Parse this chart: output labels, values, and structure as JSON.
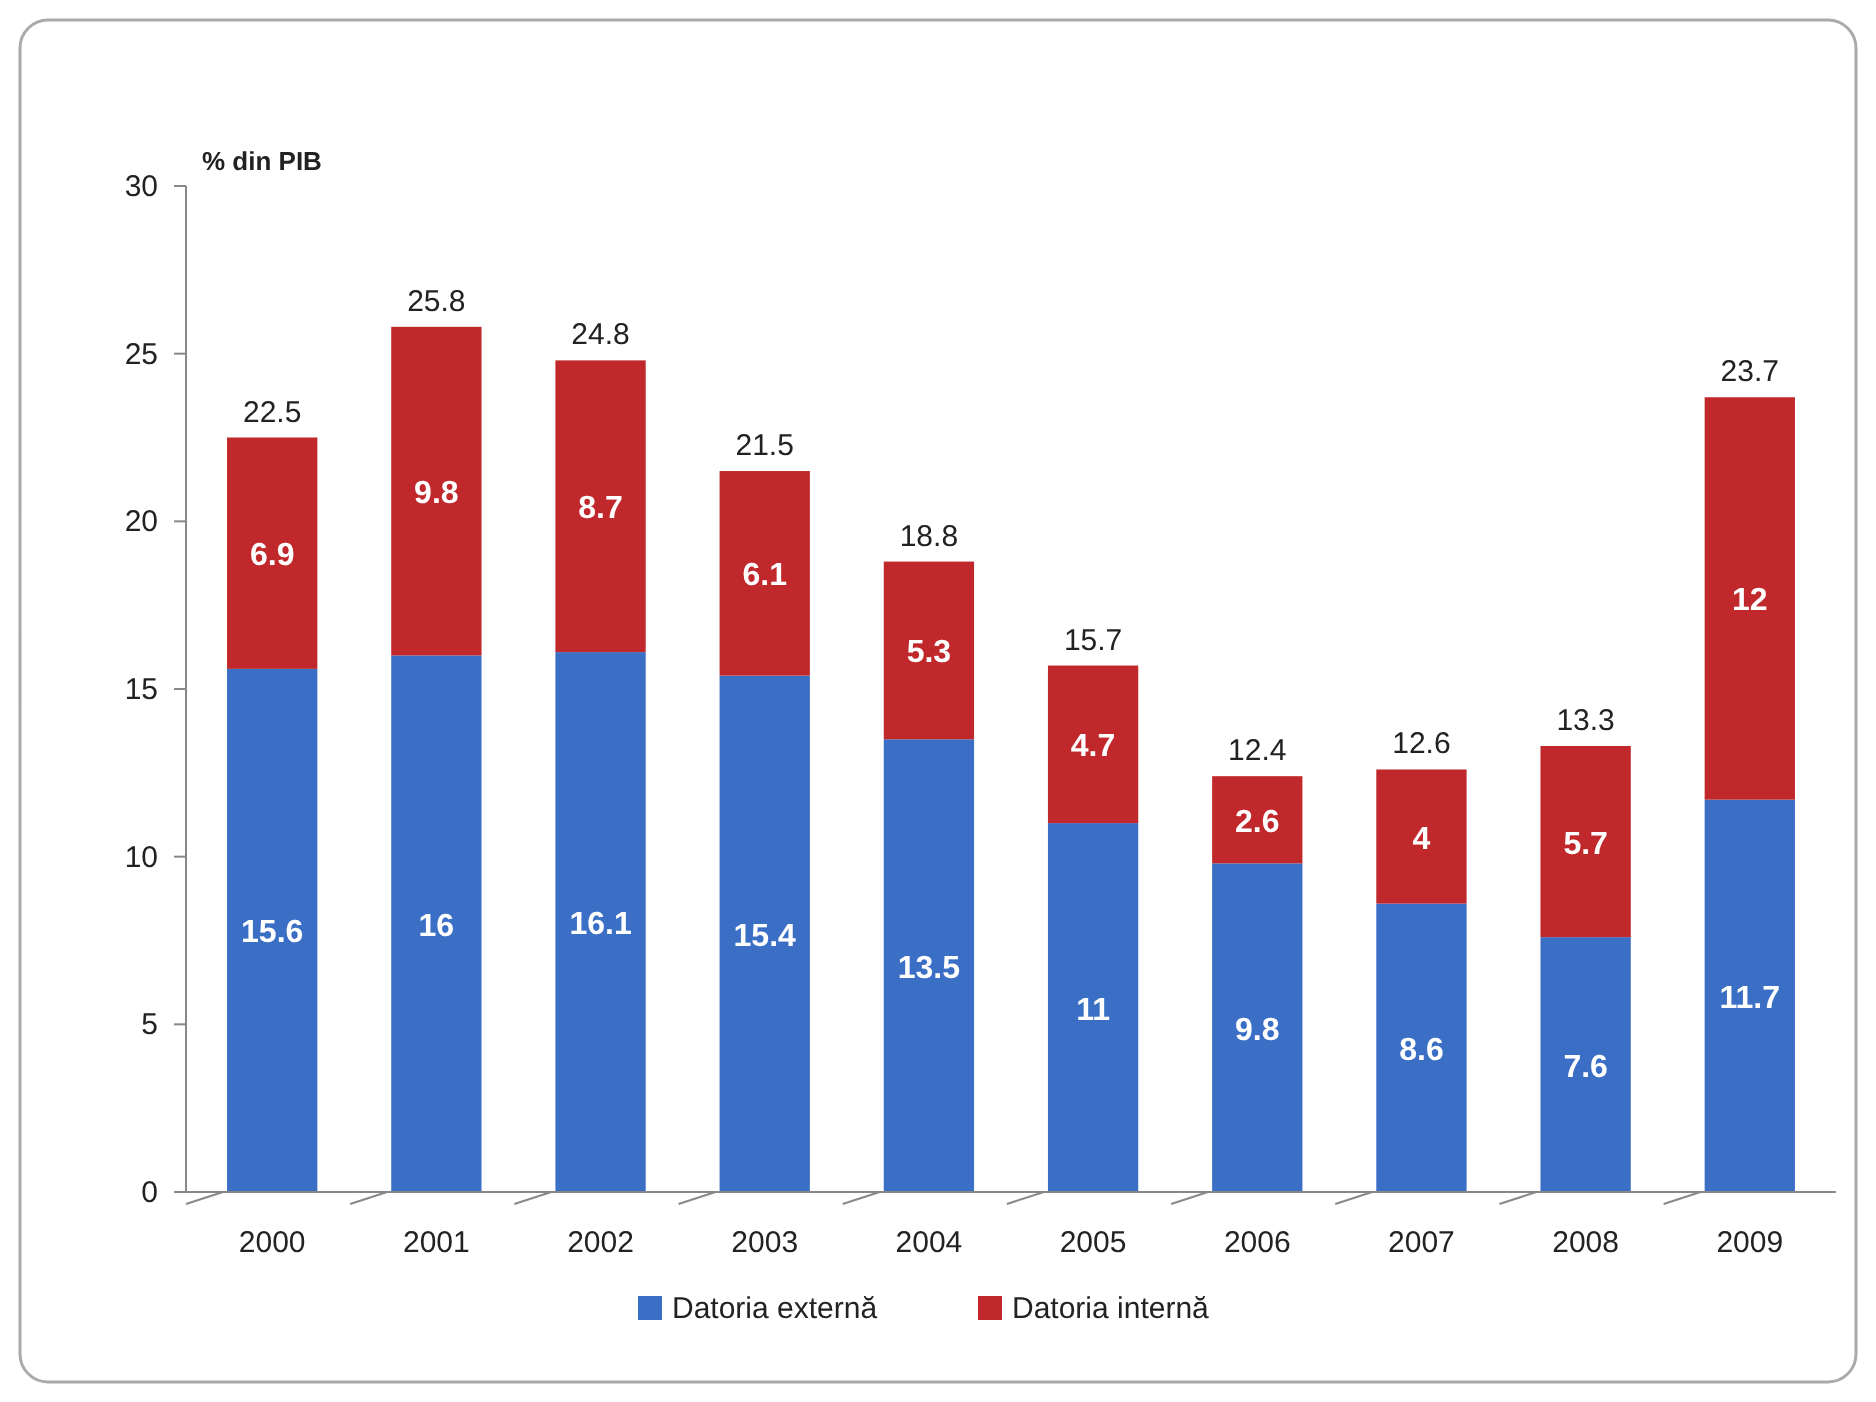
{
  "chart_data": {
    "type": "bar",
    "stacked": true,
    "ylabel": "% din PIB",
    "categories": [
      "2000",
      "2001",
      "2002",
      "2003",
      "2004",
      "2005",
      "2006",
      "2007",
      "2008",
      "2009"
    ],
    "series": [
      {
        "name": "Datoria externă",
        "color": "#3b6fc6",
        "values": [
          15.6,
          16,
          16.1,
          15.4,
          13.5,
          11,
          9.8,
          8.6,
          7.6,
          11.7
        ]
      },
      {
        "name": "Datoria internă",
        "color": "#c0282c",
        "values": [
          6.9,
          9.8,
          8.7,
          6.1,
          5.3,
          4.7,
          2.6,
          4,
          5.7,
          12
        ]
      }
    ],
    "totals": [
      "22.5",
      "25.8",
      "24.8",
      "21.5",
      "18.8",
      "15.7",
      "12.4",
      "12.6",
      "13.3",
      "23.7"
    ],
    "data_labels": true,
    "ylim": [
      0,
      30
    ],
    "yticks": [
      0,
      5,
      10,
      15,
      20,
      25,
      30
    ],
    "grid": false,
    "legend": "bottom"
  }
}
